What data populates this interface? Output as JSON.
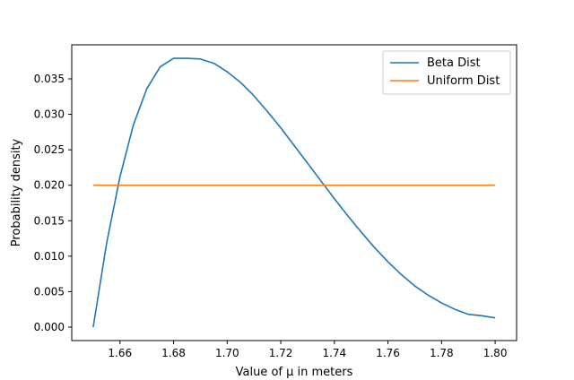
{
  "chart_data": {
    "type": "line",
    "title": "",
    "xlabel": "Value of μ in meters",
    "ylabel": "Probability density",
    "xlim": [
      1.642,
      1.808
    ],
    "ylim": [
      -0.0019,
      0.0398
    ],
    "xticks": [
      1.66,
      1.68,
      1.7,
      1.72,
      1.74,
      1.76,
      1.78,
      1.8
    ],
    "xtick_labels": [
      "1.66",
      "1.68",
      "1.70",
      "1.72",
      "1.74",
      "1.76",
      "1.78",
      "1.80"
    ],
    "yticks": [
      0.0,
      0.005,
      0.01,
      0.015,
      0.02,
      0.025,
      0.03,
      0.035
    ],
    "ytick_labels": [
      "0.000",
      "0.005",
      "0.010",
      "0.015",
      "0.020",
      "0.025",
      "0.030",
      "0.035"
    ],
    "grid": false,
    "legend_position": "upper right",
    "series": [
      {
        "name": "Beta Dist",
        "color": "#1f77b4",
        "x": [
          1.65,
          1.655,
          1.66,
          1.665,
          1.67,
          1.675,
          1.68,
          1.685,
          1.69,
          1.695,
          1.7,
          1.705,
          1.71,
          1.715,
          1.72,
          1.725,
          1.73,
          1.735,
          1.74,
          1.745,
          1.75,
          1.755,
          1.76,
          1.765,
          1.77,
          1.775,
          1.78,
          1.785,
          1.79,
          1.795,
          1.8
        ],
        "y": [
          0.0,
          0.0118,
          0.0212,
          0.0285,
          0.0336,
          0.0367,
          0.0379,
          0.0379,
          0.0378,
          0.0372,
          0.036,
          0.0345,
          0.0326,
          0.0304,
          0.0281,
          0.0256,
          0.0231,
          0.0206,
          0.0181,
          0.0157,
          0.0134,
          0.0112,
          0.0092,
          0.0074,
          0.0058,
          0.0045,
          0.0034,
          0.0025,
          0.0018,
          0.0016,
          0.0013
        ]
      },
      {
        "name": "Uniform Dist",
        "color": "#ff7f0e",
        "x": [
          1.65,
          1.8
        ],
        "y": [
          0.02,
          0.02
        ]
      }
    ]
  }
}
